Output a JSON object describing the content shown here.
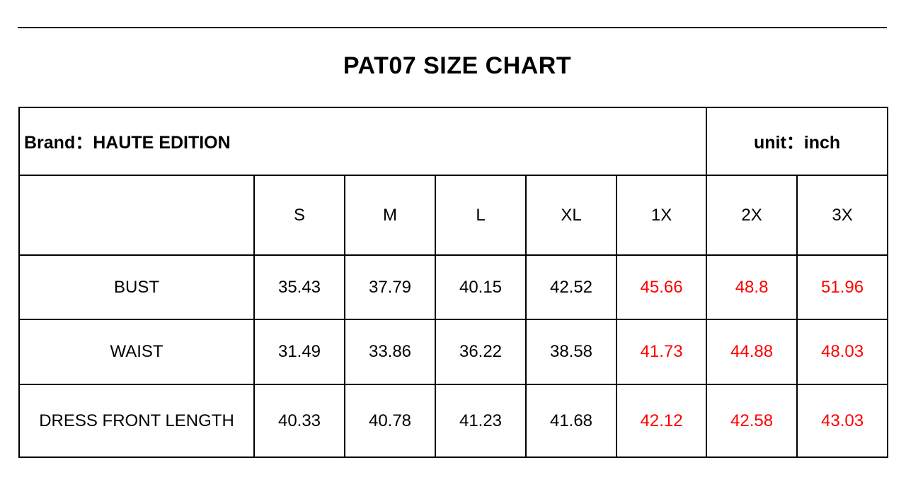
{
  "title": "PAT07 SIZE CHART",
  "brand_label": "Brand：HAUTE EDITION",
  "unit_label": "unit：inch",
  "highlight_color": "#ff0000",
  "sizes": [
    "S",
    "M",
    "L",
    "XL",
    "1X",
    "2X",
    "3X"
  ],
  "highlighted_sizes": [
    "1X",
    "2X",
    "3X"
  ],
  "rows": [
    {
      "label": "BUST",
      "values": [
        "35.43",
        "37.79",
        "40.15",
        "42.52",
        "45.66",
        "48.8",
        "51.96"
      ]
    },
    {
      "label": "WAIST",
      "values": [
        "31.49",
        "33.86",
        "36.22",
        "38.58",
        "41.73",
        "44.88",
        "48.03"
      ]
    },
    {
      "label": "DRESS FRONT LENGTH",
      "values": [
        "40.33",
        "40.78",
        "41.23",
        "41.68",
        "42.12",
        "42.58",
        "43.03"
      ]
    }
  ]
}
